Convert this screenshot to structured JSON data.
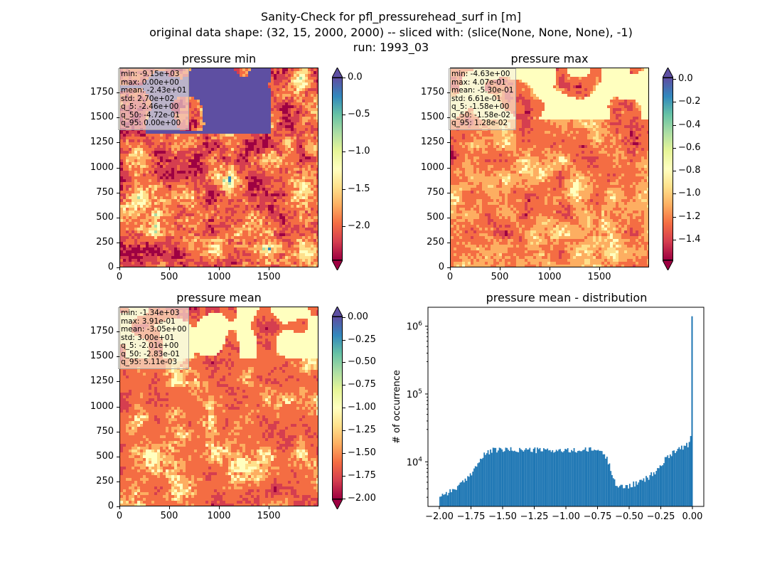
{
  "figure": {
    "title_line1": "Sanity-Check for pfl_pressurehead_surf in [m]",
    "title_line2": "original data shape: (32, 15, 2000, 2000) -- sliced with: (slice(None, None, None), -1)",
    "title_line3": "run: 1993_03"
  },
  "colors": {
    "spectral": [
      "#9e0142",
      "#d53e4f",
      "#f46d43",
      "#fdae61",
      "#fee08b",
      "#ffffbf",
      "#e6f598",
      "#abdda4",
      "#66c2a5",
      "#3288bd",
      "#5e4fa2"
    ],
    "hist_bar": "#1f77b4"
  },
  "panels": [
    {
      "title": "pressure min",
      "stats": [
        "min: -9.15e+03",
        "max: 0.00e+00",
        "mean: -2.43e+01",
        "std: 2.70e+02",
        "q_5: -2.46e+00",
        "q_50: -4.72e-01",
        "q_95: 0.00e+00"
      ],
      "colorbar": {
        "vmin": -2.46,
        "vmax": 0.0,
        "ticks": [
          "0.0",
          "−0.5",
          "−1.0",
          "−1.5",
          "−2.0"
        ],
        "tick_values": [
          0.0,
          -0.5,
          -1.0,
          -1.5,
          -2.0
        ],
        "extend": "both"
      }
    },
    {
      "title": "pressure max",
      "stats": [
        "min: -4.63e+00",
        "max: 4.07e-01",
        "mean: -5.30e-01",
        "std: 6.61e-01",
        "q_5: -1.58e+00",
        "q_50: -1.58e-02",
        "q_95: 1.28e-02"
      ],
      "colorbar": {
        "vmin": -1.58,
        "vmax": 0.0128,
        "ticks": [
          "0.0",
          "−0.2",
          "−0.4",
          "−0.6",
          "−0.8",
          "−1.0",
          "−1.2",
          "−1.4"
        ],
        "tick_values": [
          0.0,
          -0.2,
          -0.4,
          -0.6,
          -0.8,
          -1.0,
          -1.2,
          -1.4
        ],
        "extend": "both"
      }
    },
    {
      "title": "pressure mean",
      "stats": [
        "min: -1.34e+03",
        "max: 3.91e-01",
        "mean: -3.05e+00",
        "std: 3.00e+01",
        "q_5: -2.01e+00",
        "q_50: -2.83e-01",
        "q_95: 5.11e-03"
      ],
      "colorbar": {
        "vmin": -2.01,
        "vmax": 0.00511,
        "ticks": [
          "0.00",
          "−0.25",
          "−0.50",
          "−0.75",
          "−1.00",
          "−1.25",
          "−1.50",
          "−1.75",
          "−2.00"
        ],
        "tick_values": [
          0.0,
          -0.25,
          -0.5,
          -0.75,
          -1.0,
          -1.25,
          -1.5,
          -1.75,
          -2.0
        ],
        "extend": "both"
      }
    }
  ],
  "map_axes": {
    "x_ticks": [
      "0",
      "500",
      "1000",
      "1500"
    ],
    "x_tick_values": [
      0,
      500,
      1000,
      1500
    ],
    "y_ticks": [
      "0",
      "250",
      "500",
      "750",
      "1000",
      "1250",
      "1500",
      "1750"
    ],
    "y_tick_values": [
      0,
      250,
      500,
      750,
      1000,
      1250,
      1500,
      1750
    ],
    "range": [
      0,
      2000
    ]
  },
  "chart_data": {
    "type": "bar",
    "title": "pressure mean - distribution",
    "ylabel": "# of occurrence",
    "xlabel": "",
    "yscale": "log",
    "ylim": [
      2200,
      1900000
    ],
    "xlim": [
      -2.09,
      0.09
    ],
    "x_ticks": [
      "−2.00",
      "−1.75",
      "−1.50",
      "−1.25",
      "−1.00",
      "−0.75",
      "−0.50",
      "−0.25",
      "0.00"
    ],
    "x_tick_values": [
      -2.0,
      -1.75,
      -1.5,
      -1.25,
      -1.0,
      -0.75,
      -0.5,
      -0.25,
      0.0
    ],
    "y_ticks": [
      {
        "base": "10",
        "exp": "4",
        "value": 10000
      },
      {
        "base": "10",
        "exp": "5",
        "value": 100000
      },
      {
        "base": "10",
        "exp": "6",
        "value": 1000000
      }
    ],
    "bin_width": 0.01,
    "bins_x": [
      -2.0,
      -1.9,
      -1.8,
      -1.75,
      -1.7,
      -1.65,
      -1.6,
      -1.55,
      -1.5,
      -1.4,
      -1.3,
      -1.2,
      -1.1,
      -1.0,
      -0.9,
      -0.8,
      -0.75,
      -0.7,
      -0.67,
      -0.65,
      -0.62,
      -0.6,
      -0.58,
      -0.55,
      -0.5,
      -0.45,
      -0.4,
      -0.35,
      -0.3,
      -0.25,
      -0.2,
      -0.15,
      -0.1,
      -0.05,
      -0.02,
      -0.01,
      0.0
    ],
    "bins_y": [
      3200,
      3800,
      5200,
      7000,
      9500,
      12500,
      14500,
      15000,
      15000,
      15000,
      15000,
      14800,
      14800,
      14500,
      14800,
      15000,
      15000,
      13000,
      10000,
      8000,
      5500,
      4300,
      4200,
      4300,
      4500,
      4800,
      5200,
      6000,
      7000,
      9000,
      12000,
      14500,
      16000,
      17500,
      19000,
      24000,
      1400000
    ]
  }
}
